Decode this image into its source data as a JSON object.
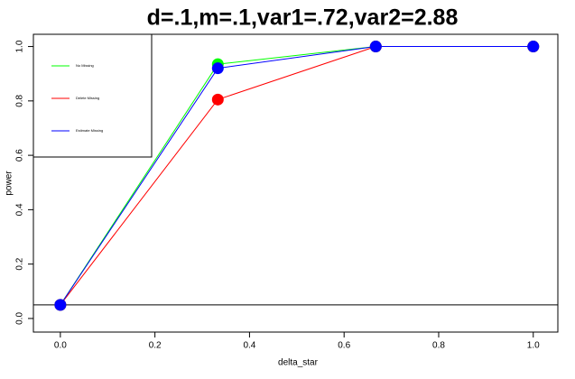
{
  "chart_data": {
    "type": "line",
    "title": "d=.1,m=.1,var1=.72,var2=2.88",
    "x_label": "delta_star",
    "y_label": "power",
    "x": [
      0,
      0.333,
      0.667,
      1
    ],
    "series": [
      {
        "name": "No Missing",
        "color": "#00ff00",
        "values": [
          0.05,
          0.935,
          1.0,
          1.0
        ]
      },
      {
        "name": "Delete Missing",
        "color": "#ff0000",
        "values": [
          0.05,
          0.805,
          1.0,
          1.0
        ]
      },
      {
        "name": "Estimate Missing",
        "color": "#0000ff",
        "values": [
          0.05,
          0.92,
          1.0,
          1.0
        ]
      }
    ],
    "hline": 0.05,
    "xlim": [
      -0.057,
      1.052
    ],
    "ylim": [
      -0.05,
      1.045
    ],
    "xticks": [
      {
        "value": 0,
        "label": "0.0"
      },
      0.2,
      0.4,
      0.6,
      0.8,
      {
        "value": 1,
        "label": "1.0"
      }
    ],
    "yticks": [
      {
        "value": 0,
        "label": "0.0"
      },
      0.2,
      0.4,
      0.6,
      0.8,
      {
        "value": 1,
        "label": "1.0"
      }
    ],
    "legend": "top-left"
  }
}
